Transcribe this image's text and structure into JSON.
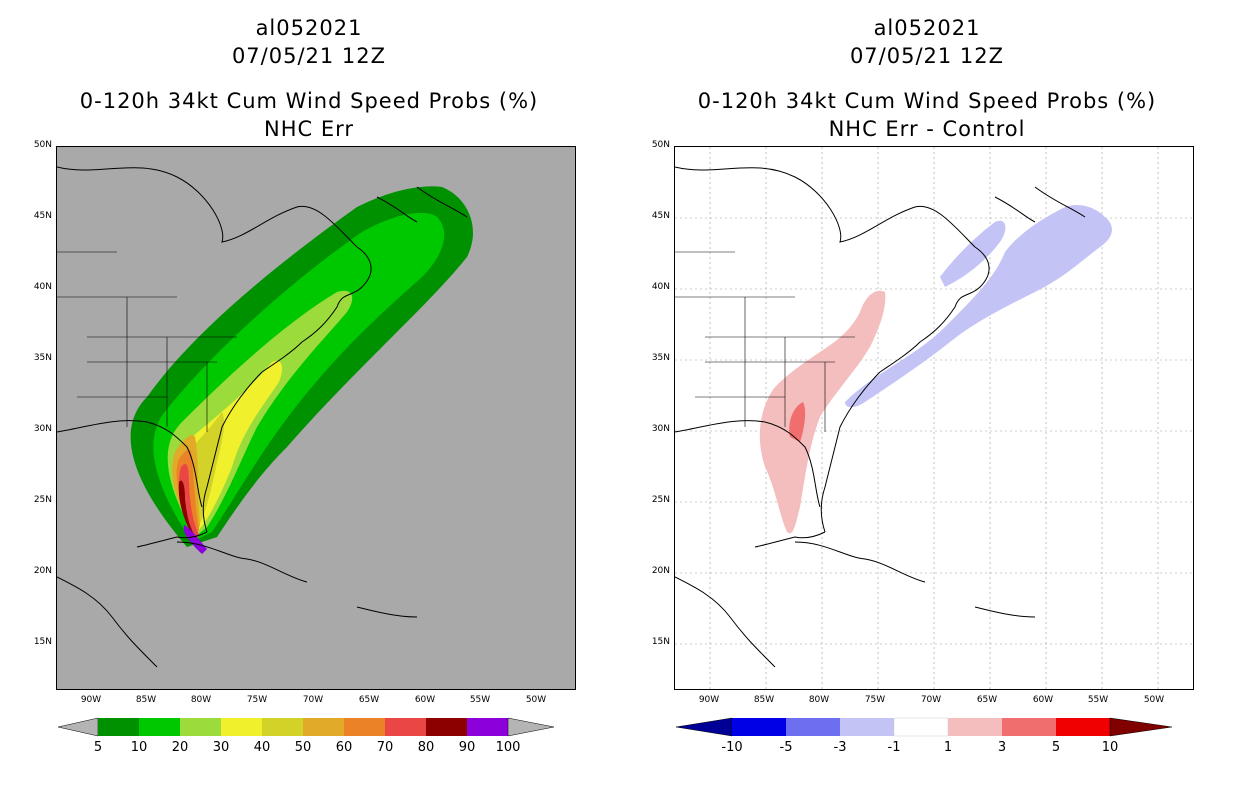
{
  "left": {
    "title1": "al052021",
    "title2": "07/05/21 12Z",
    "title3": "0-120h 34kt Cum Wind Speed Probs (%)",
    "title4": "NHC Err",
    "background": "#a9a9a9",
    "colorbar": {
      "labels": [
        "5",
        "10",
        "20",
        "30",
        "40",
        "50",
        "60",
        "70",
        "80",
        "90",
        "100"
      ],
      "colors": [
        "#009100",
        "#00c800",
        "#9bdc3c",
        "#f0f02d",
        "#d2d228",
        "#e1aa28",
        "#eb8228",
        "#eb4646",
        "#8c0000",
        "#8c00dc"
      ],
      "arrow_color": "#b4b4b4"
    }
  },
  "right": {
    "title1": "al052021",
    "title2": "07/05/21 12Z",
    "title3": "0-120h 34kt Cum Wind Speed Probs (%)",
    "title4": "NHC Err - Control",
    "background": "#ffffff",
    "colorbar": {
      "labels": [
        "-10",
        "-5",
        "-3",
        "-1",
        "1",
        "3",
        "5",
        "10"
      ],
      "colors": [
        "#0000e6",
        "#6e6ef0",
        "#c3c3f5",
        "#ffffff",
        "#f5bebe",
        "#f06e6e",
        "#f00000"
      ],
      "arrow_left": "#000096",
      "arrow_right": "#800000"
    }
  },
  "axes": {
    "lat_labels": [
      "50N",
      "45N",
      "40N",
      "35N",
      "30N",
      "25N",
      "20N",
      "15N"
    ],
    "lon_labels": [
      "90W",
      "85W",
      "80W",
      "75W",
      "70W",
      "65W",
      "60W",
      "55W",
      "50W"
    ]
  }
}
